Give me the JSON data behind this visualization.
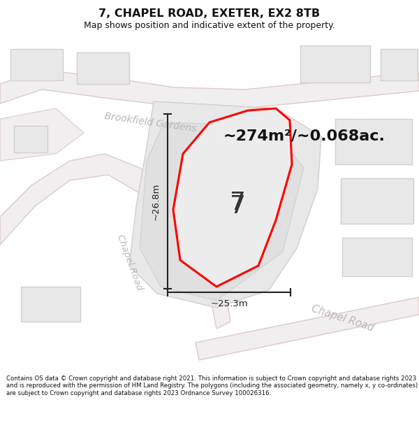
{
  "title": "7, CHAPEL ROAD, EXETER, EX2 8TB",
  "subtitle": "Map shows position and indicative extent of the property.",
  "footer": "Contains OS data © Crown copyright and database right 2021. This information is subject to Crown copyright and database rights 2023 and is reproduced with the permission of HM Land Registry. The polygons (including the associated geometry, namely x, y co-ordinates) are subject to Crown copyright and database rights 2023 Ordnance Survey 100026316.",
  "area_text": "~274m²/~0.068ac.",
  "label_number": "7",
  "dim_height": "~26.8m",
  "dim_width": "~25.3m",
  "road_label_brookfield": "Brookfield Gardens",
  "road_label_chapel1": "Chapel Road",
  "road_label_chapel2": "Chapel Road",
  "bg_color": "#ffffff",
  "map_bg_color": "#f7f7f7",
  "road_fill": "#f0eeee",
  "road_edge": "#e0c8c8",
  "bldg_fill": "#e8e8e8",
  "bldg_edge": "#d0d0d0",
  "highlight_fill": "#ececec",
  "highlight_edge": "#ff0000",
  "dim_color": "#222222",
  "road_text_color": "#b8b8b8",
  "title_color": "#111111",
  "footer_color": "#111111"
}
